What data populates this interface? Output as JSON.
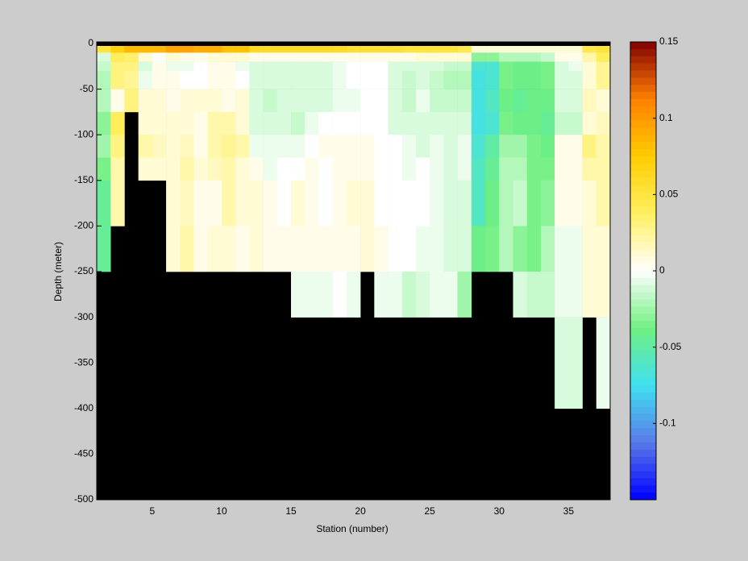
{
  "chart_data": {
    "type": "heatmap",
    "xlabel": "Station (number)",
    "ylabel": "Depth (meter)",
    "x": [
      1,
      2,
      3,
      4,
      5,
      6,
      7,
      8,
      9,
      10,
      11,
      12,
      13,
      14,
      15,
      16,
      17,
      18,
      19,
      20,
      21,
      22,
      23,
      24,
      25,
      26,
      27,
      28,
      29,
      30,
      31,
      32,
      33,
      34,
      35,
      36,
      37,
      38
    ],
    "y": [
      0,
      -10,
      -20,
      -30,
      -50,
      -75,
      -100,
      -125,
      -150,
      -200,
      -250,
      -300,
      -400,
      -500
    ],
    "z": [
      [
        0.05,
        0.07,
        0.085,
        0.085,
        0.085,
        0.095,
        0.095,
        0.09,
        0.09,
        0.08,
        0.08,
        0.06,
        0.06,
        0.06,
        0.06,
        0.06,
        0.06,
        0.06,
        0.055,
        0.055,
        0.055,
        0.055,
        0.05,
        0.05,
        0.05,
        0.05,
        0.045,
        0.01,
        0.01,
        0.01,
        0.01,
        0.01,
        0.01,
        0.01,
        0.01,
        0.045,
        0.05
      ],
      [
        -0.01,
        0.04,
        0.035,
        0.01,
        0,
        0.01,
        0.005,
        0.005,
        0.01,
        0.01,
        0.01,
        0.005,
        0.005,
        0.005,
        0.005,
        0.005,
        0.005,
        0.005,
        0.005,
        0.005,
        0.005,
        0.005,
        0.005,
        0.01,
        0.01,
        0.01,
        0.01,
        -0.03,
        -0.03,
        -0.02,
        -0.02,
        -0.02,
        -0.015,
        0.005,
        0.005,
        0.02,
        0.04
      ],
      [
        -0.015,
        0.03,
        0.03,
        -0.01,
        0.005,
        -0.005,
        -0.005,
        0,
        0.005,
        0.005,
        -0.005,
        -0.01,
        -0.01,
        -0.01,
        -0.01,
        -0.01,
        -0.01,
        -0.005,
        0,
        0,
        0,
        -0.01,
        -0.01,
        -0.01,
        -0.01,
        -0.015,
        -0.015,
        -0.065,
        -0.065,
        -0.035,
        -0.04,
        -0.04,
        -0.035,
        -0.01,
        -0.005,
        0.01,
        0.025
      ],
      [
        -0.02,
        0.03,
        0.025,
        -0.005,
        0.005,
        0.005,
        0,
        0,
        0.005,
        0.005,
        0,
        -0.01,
        -0.01,
        -0.01,
        -0.01,
        -0.01,
        -0.01,
        -0.005,
        0,
        0,
        0,
        -0.01,
        -0.015,
        -0.01,
        -0.015,
        -0.02,
        -0.02,
        -0.07,
        -0.065,
        -0.035,
        -0.04,
        -0.04,
        -0.035,
        -0.01,
        -0.01,
        0.01,
        0.025
      ],
      [
        -0.02,
        0.005,
        0.03,
        0.01,
        0.01,
        0.005,
        0.01,
        0.01,
        0.01,
        0.005,
        0.01,
        -0.01,
        -0.015,
        -0.01,
        -0.01,
        -0.01,
        -0.01,
        -0.005,
        -0.005,
        0,
        0,
        -0.01,
        -0.015,
        -0.005,
        -0.015,
        -0.015,
        -0.015,
        -0.07,
        -0.06,
        -0.04,
        -0.045,
        -0.04,
        -0.04,
        -0.01,
        -0.01,
        0.015,
        0.01
      ],
      [
        -0.03,
        0.04,
        null,
        0.01,
        0.01,
        0.01,
        0.01,
        0.005,
        0.02,
        0.02,
        0.01,
        -0.01,
        -0.01,
        -0.01,
        -0.015,
        -0.005,
        0,
        0,
        0,
        0,
        0,
        -0.01,
        -0.01,
        -0.01,
        -0.01,
        -0.01,
        -0.01,
        -0.07,
        -0.065,
        -0.035,
        -0.04,
        -0.04,
        -0.045,
        -0.015,
        -0.015,
        0.01,
        0.015
      ],
      [
        -0.025,
        0.03,
        null,
        0.02,
        0.015,
        0.01,
        0.015,
        0.005,
        0.02,
        0.025,
        0.02,
        -0.005,
        -0.005,
        -0.005,
        -0.005,
        0,
        0.005,
        0.005,
        0.005,
        0.005,
        0,
        0,
        -0.005,
        -0.01,
        -0.005,
        -0.01,
        -0.005,
        -0.065,
        -0.05,
        -0.025,
        -0.025,
        -0.035,
        -0.04,
        0.005,
        0.005,
        0.03,
        0.02
      ],
      [
        -0.035,
        0.02,
        null,
        0.01,
        0.01,
        0.01,
        0.02,
        0.01,
        0.015,
        0.02,
        0.01,
        0.005,
        -0.005,
        0,
        0,
        0.005,
        0,
        0.005,
        0.005,
        0.005,
        0,
        0,
        -0.005,
        0,
        -0.005,
        -0.01,
        -0.005,
        -0.06,
        -0.045,
        -0.02,
        -0.02,
        -0.035,
        -0.035,
        0.005,
        0.005,
        0.02,
        0.02
      ],
      [
        -0.045,
        0.02,
        null,
        null,
        null,
        0.01,
        0.015,
        0.005,
        0.005,
        0.02,
        0.01,
        0.01,
        0.005,
        0,
        0.01,
        0.005,
        0,
        0.005,
        0.01,
        0.01,
        0,
        0,
        0,
        0,
        -0.005,
        -0.01,
        -0.01,
        -0.06,
        -0.04,
        -0.02,
        -0.015,
        -0.035,
        -0.03,
        0.005,
        0.005,
        0.01,
        0.02
      ],
      [
        -0.045,
        null,
        null,
        null,
        null,
        0.01,
        0.02,
        0.005,
        0.01,
        0.01,
        0.005,
        0.01,
        0.005,
        0.005,
        0.005,
        0.005,
        0.005,
        0.005,
        0.005,
        0.01,
        0.005,
        0,
        0,
        -0.005,
        -0.005,
        -0.01,
        -0.01,
        -0.04,
        -0.035,
        -0.02,
        -0.03,
        -0.035,
        -0.02,
        -0.005,
        -0.005,
        0.01,
        0.01
      ],
      [
        null,
        null,
        null,
        null,
        null,
        null,
        null,
        null,
        null,
        null,
        null,
        null,
        null,
        null,
        -0.005,
        -0.005,
        -0.005,
        0,
        -0.005,
        null,
        -0.005,
        -0.005,
        -0.015,
        -0.01,
        -0.005,
        -0.005,
        -0.025,
        null,
        null,
        null,
        -0.01,
        -0.015,
        -0.015,
        -0.005,
        -0.005,
        0.01,
        0.01
      ],
      [
        null,
        null,
        null,
        null,
        null,
        null,
        null,
        null,
        null,
        null,
        null,
        null,
        null,
        null,
        null,
        null,
        null,
        null,
        null,
        null,
        null,
        null,
        null,
        null,
        null,
        null,
        null,
        null,
        null,
        null,
        null,
        null,
        null,
        -0.01,
        -0.01,
        null,
        -0.005
      ],
      [
        null,
        null,
        null,
        null,
        null,
        null,
        null,
        null,
        null,
        null,
        null,
        null,
        null,
        null,
        null,
        null,
        null,
        null,
        null,
        null,
        null,
        null,
        null,
        null,
        null,
        null,
        null,
        null,
        null,
        null,
        null,
        null,
        null,
        null,
        null,
        null,
        null
      ]
    ],
    "xlim": [
      1,
      38
    ],
    "ylim": [
      -500,
      0
    ],
    "xticks": [
      5,
      10,
      15,
      20,
      25,
      30,
      35
    ],
    "yticks": [
      0,
      -50,
      -100,
      -150,
      -200,
      -250,
      -300,
      -350,
      -400,
      -450,
      -500
    ],
    "clim": [
      -0.15,
      0.15
    ],
    "cticks": [
      0.15,
      0.1,
      0.05,
      0,
      -0.05,
      -0.1
    ],
    "colormap": [
      "#0000ff",
      "#5a7ae8",
      "#40e0f0",
      "#70f080",
      "#ffffff",
      "#fff060",
      "#ffcc00",
      "#ff8000",
      "#800000"
    ],
    "nan_color": "#000000"
  }
}
